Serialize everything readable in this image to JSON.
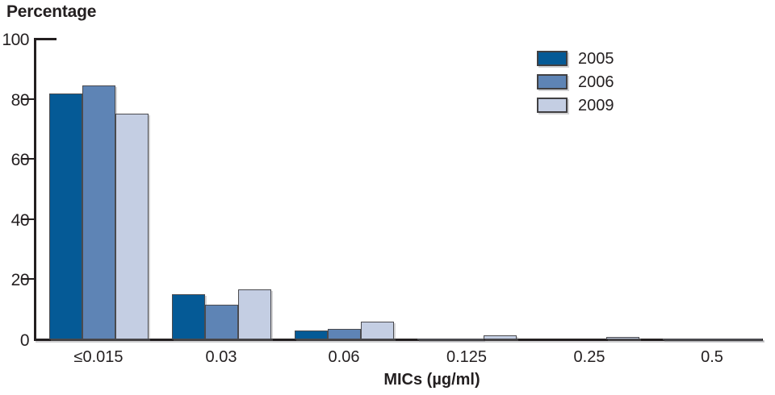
{
  "title": "Percentage",
  "chart_data": {
    "type": "bar",
    "title": "Percentage",
    "xlabel": "MICs (µg/ml)",
    "ylabel": "",
    "categories": [
      "≤0.015",
      "0.03",
      "0.06",
      "0.125",
      "0.25",
      "0.5"
    ],
    "series": [
      {
        "name": "2005",
        "color": "#055A96",
        "values": [
          81.7,
          15.0,
          3.0,
          0.4,
          0,
          0.2
        ]
      },
      {
        "name": "2006",
        "color": "#5E84B5",
        "values": [
          84.5,
          11.5,
          3.4,
          0.4,
          0,
          0.2
        ]
      },
      {
        "name": "2009",
        "color": "#C4CEE3",
        "values": [
          75.0,
          16.7,
          6.0,
          1.3,
          0.8,
          0.3
        ]
      }
    ],
    "ylim": [
      0,
      100
    ],
    "yticks": [
      0,
      20,
      40,
      60,
      80,
      100
    ],
    "grid": false,
    "legend_position": "top-right",
    "colors": {
      "bar_border": "#4A4A4E",
      "axis": "#231F20",
      "text": "#231F20"
    }
  }
}
